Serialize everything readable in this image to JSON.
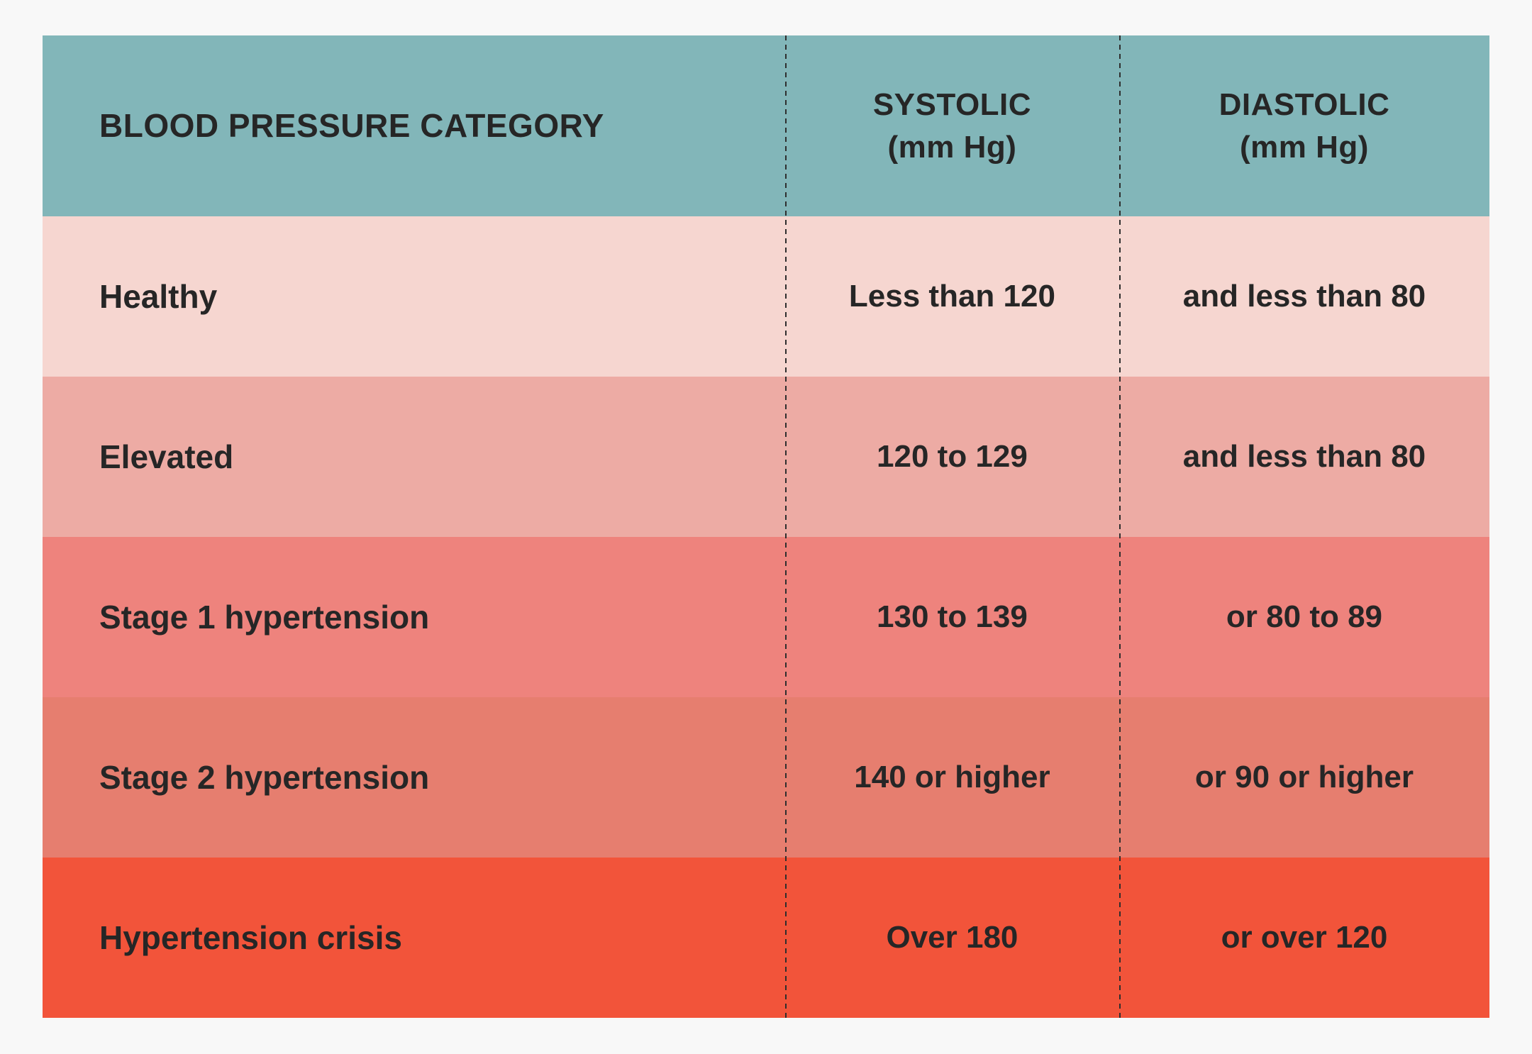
{
  "page": {
    "background": "#f8f8f8"
  },
  "table": {
    "text_color": "#262626",
    "divider_color": "#2e2e2e",
    "header": {
      "category_label": "BLOOD PRESSURE CATEGORY",
      "systolic_label": "SYSTOLIC\n(mm Hg)",
      "diastolic_label": "DIASTOLIC\n(mm Hg)"
    }
  },
  "chart_data": {
    "type": "table",
    "columns": [
      "BLOOD PRESSURE CATEGORY",
      "SYSTOLIC (mm Hg)",
      "DIASTOLIC (mm Hg)"
    ],
    "rows": [
      [
        "Healthy",
        "Less than 120",
        "and less than 80"
      ],
      [
        "Elevated",
        "120 to 129",
        "and less than 80"
      ],
      [
        "Stage 1 hypertension",
        "130 to 139",
        "or 80 to 89"
      ],
      [
        "Stage 2 hypertension",
        "140 or higher",
        "or 90 or higher"
      ],
      [
        "Hypertension crisis",
        "Over 180",
        "or over 120"
      ]
    ],
    "header_color": "#82b6b9",
    "row_colors": [
      "#f6d6d0",
      "#edaba4",
      "#ee837d",
      "#e67e6f",
      "#f2543a"
    ],
    "layout": {
      "legend": "none",
      "grid": "dashed vertical column dividers only"
    }
  }
}
